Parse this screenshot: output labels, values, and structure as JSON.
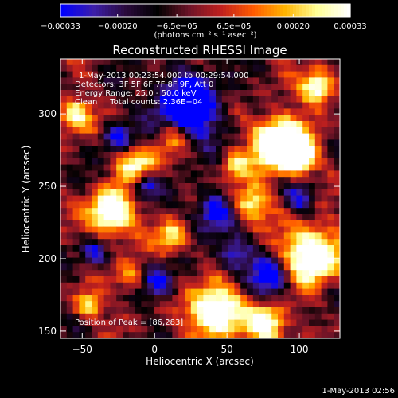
{
  "colorbar": {
    "tick_values": [
      -0.00033,
      -0.0002,
      -6.5e-05,
      6.5e-05,
      0.0002,
      0.00033
    ],
    "tick_labels": [
      "−0.00033",
      "−0.00020",
      "−6.5e−05",
      "6.5e−05",
      "0.00020",
      "0.00033"
    ],
    "unit_label": "(photons cm⁻² s⁻¹ asec⁻²)",
    "range": [
      -0.00033,
      0.00033
    ],
    "colors": [
      "#0000ff",
      "#3c1ea8",
      "#2a0a3c",
      "#000000",
      "#6e1428",
      "#c0201e",
      "#ff5a00",
      "#ffb400",
      "#ffff96",
      "#ffffff"
    ]
  },
  "image": {
    "title": "Reconstructed RHESSI Image",
    "info_lines": [
      "1-May-2013 00:23:54.000 to 00:29:54.000",
      "Detectors: 3F 5F 6F 7F 8F 9F, Att 0",
      "Energy Range: 25.0 - 50.0 keV",
      "Clean     Total counts: 2.36E+04"
    ],
    "peak_text": "Position of Peak = [86,283]",
    "x_axis": {
      "label": "Heliocentric X (arcsec)",
      "range": [
        -65,
        128
      ],
      "ticks": [
        -50,
        0,
        50,
        100
      ],
      "tick_labels": [
        "−50",
        "0",
        "50",
        "100"
      ]
    },
    "y_axis": {
      "label": "Heliocentric Y (arcsec)",
      "range": [
        145,
        338
      ],
      "ticks": [
        150,
        200,
        250,
        300
      ],
      "tick_labels": [
        "150",
        "200",
        "250",
        "300"
      ]
    }
  },
  "footer": {
    "timestamp": "1-May-2013 02:56"
  }
}
